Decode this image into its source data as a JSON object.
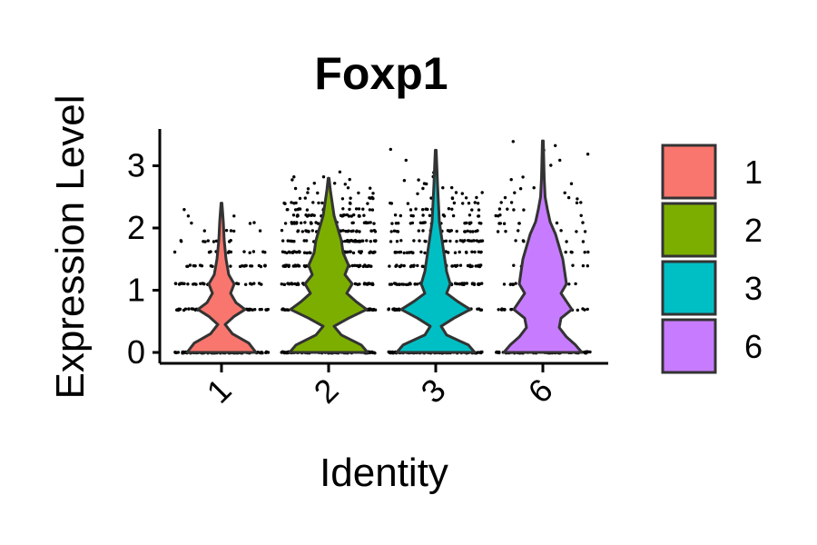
{
  "chart_data": {
    "type": "violin",
    "title": "Foxp1",
    "xlabel": "Identity",
    "ylabel": "Expression Level",
    "categories": [
      "1",
      "2",
      "3",
      "6"
    ],
    "colors": [
      "#F8766D",
      "#7CAE00",
      "#00BFC4",
      "#C77CFF"
    ],
    "y_ticks": [
      "0",
      "1",
      "2",
      "3"
    ],
    "ylim": [
      -0.15,
      3.6
    ],
    "y_max_per_group": [
      2.4,
      2.8,
      3.25,
      3.4
    ],
    "jitter_points": true,
    "legend": {
      "position": "right",
      "items": [
        "1",
        "2",
        "3",
        "6"
      ]
    }
  }
}
